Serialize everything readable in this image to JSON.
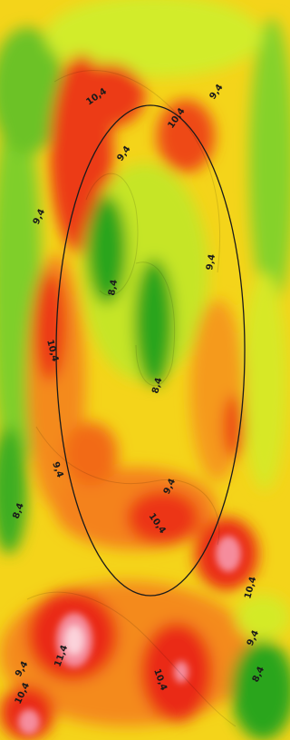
{
  "map": {
    "legend_colors": {
      "dark_green": "#1f9a1f",
      "green": "#5cc02a",
      "yellow_green": "#b9e22c",
      "yellow": "#f1f114",
      "orange": "#f7a21a",
      "orange_red": "#f26a18",
      "red": "#ea2a17",
      "pink": "#f58c9c",
      "light_pink": "#fbd2da"
    },
    "outline": "circle",
    "contour_labels": [
      {
        "text": "10,4"
      },
      {
        "text": "9,4"
      },
      {
        "text": "10,4"
      },
      {
        "text": "9,4"
      },
      {
        "text": "9,4"
      },
      {
        "text": "9,4"
      },
      {
        "text": "8,4"
      },
      {
        "text": "10,4"
      },
      {
        "text": "8,4"
      },
      {
        "text": "9,4"
      },
      {
        "text": "9,4"
      },
      {
        "text": "8,4"
      },
      {
        "text": "10,4"
      },
      {
        "text": "10,4"
      },
      {
        "text": "9,4"
      },
      {
        "text": "8,4"
      },
      {
        "text": "11,4"
      },
      {
        "text": "9,4"
      },
      {
        "text": "10,4"
      },
      {
        "text": "10,4"
      }
    ]
  }
}
